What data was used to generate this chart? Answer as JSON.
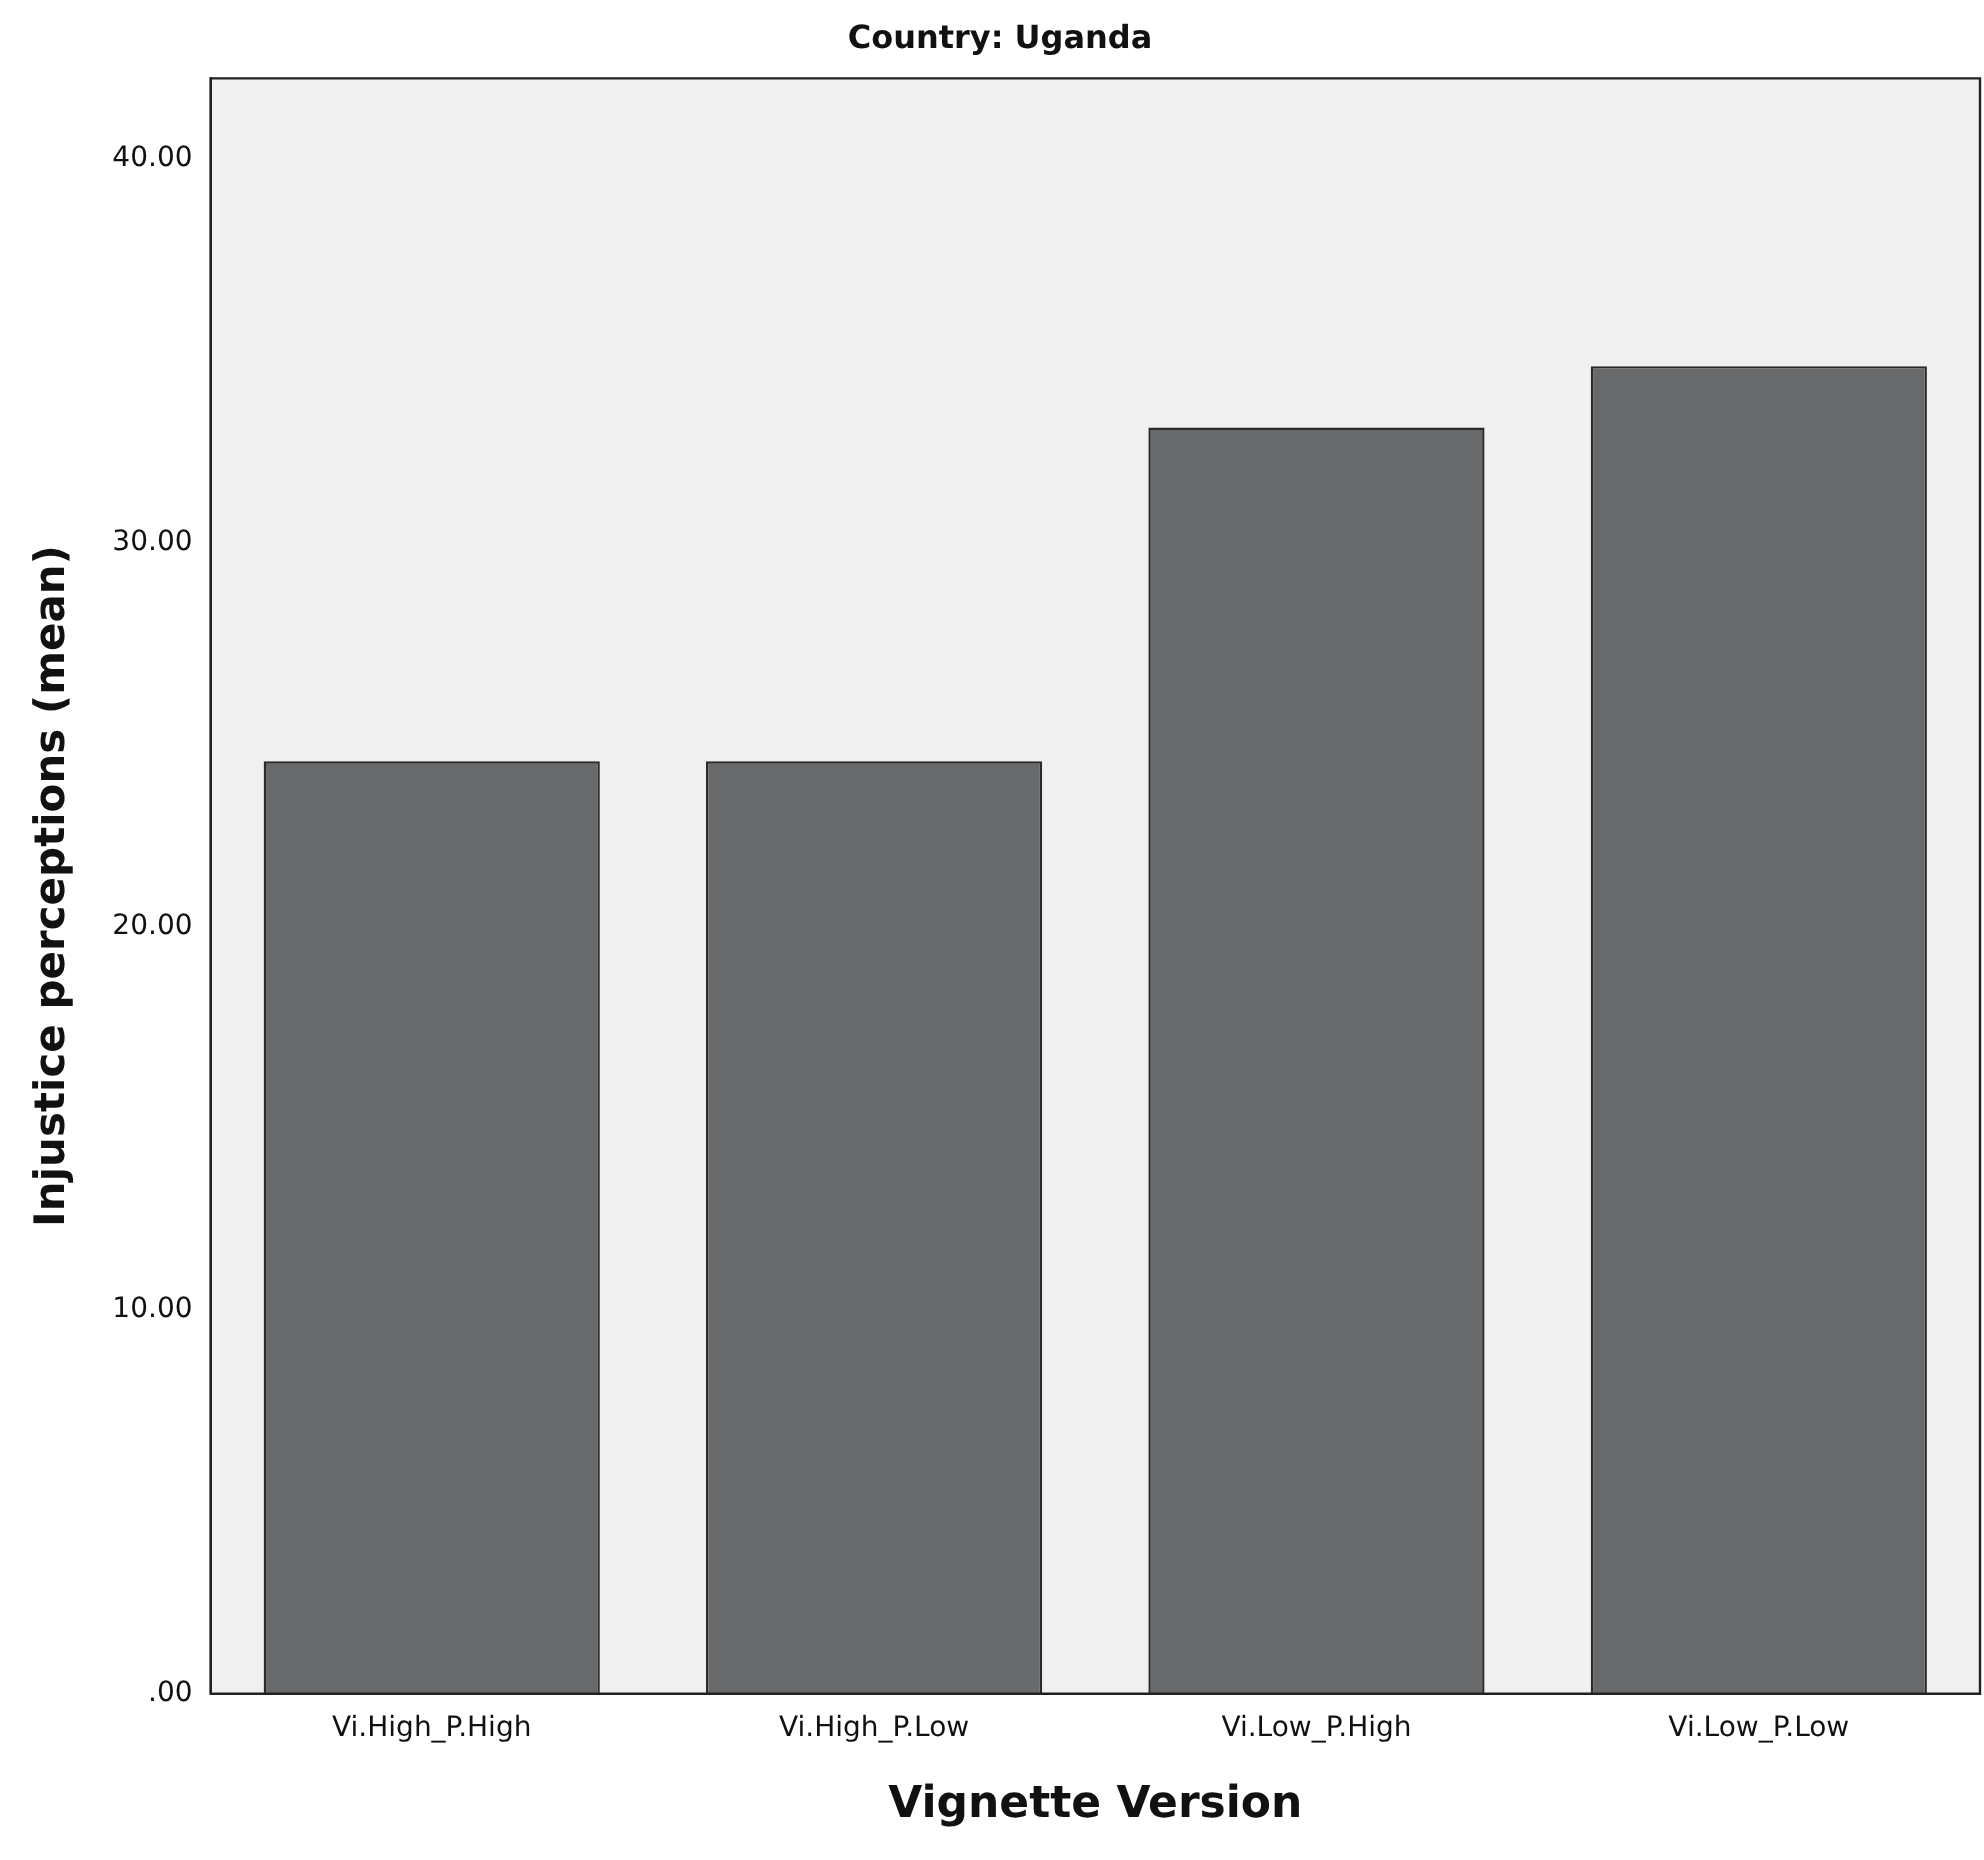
{
  "chart_data": {
    "type": "bar",
    "title": "Country: Uganda",
    "xlabel": "Vignette Version",
    "ylabel": "Injustice perceptions (mean)",
    "categories": [
      "Vi.High_P.High",
      "Vi.High_P.Low",
      "Vi.Low_P.High",
      "Vi.Low_P.Low"
    ],
    "values": [
      24.3,
      24.3,
      33.0,
      34.6
    ],
    "color": "#68696b",
    "ylim": [
      0,
      42.1
    ],
    "yticks": [
      {
        "value": 0,
        "label": ".00"
      },
      {
        "value": 10,
        "label": "10.00"
      },
      {
        "value": 20,
        "label": "20.00"
      },
      {
        "value": 30,
        "label": "30.00"
      },
      {
        "value": 40,
        "label": "40.00"
      }
    ],
    "grid": false,
    "legend": false
  }
}
